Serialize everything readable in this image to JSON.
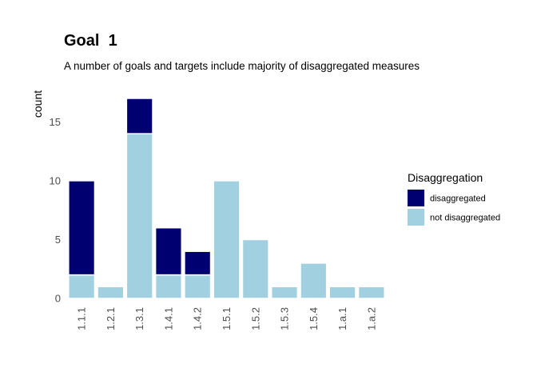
{
  "chart_data": {
    "type": "bar",
    "stacked": true,
    "title": "Goal  1",
    "subtitle": "A number of goals and targets include majority of disaggregated measures",
    "xlabel": "",
    "ylabel": "count",
    "ylim": [
      0,
      18
    ],
    "yticks": [
      0,
      5,
      10,
      15
    ],
    "categories": [
      "1.1.1",
      "1.2.1",
      "1.3.1",
      "1.4.1",
      "1.4.2",
      "1.5.1",
      "1.5.2",
      "1.5.3",
      "1.5.4",
      "1.a.1",
      "1.a.2"
    ],
    "series": [
      {
        "name": "not disaggregated",
        "color": "#a1d0e0",
        "values": [
          2,
          1,
          14,
          2,
          2,
          10,
          5,
          1,
          3,
          1,
          1
        ]
      },
      {
        "name": "disaggregated",
        "color": "#000070",
        "values": [
          8,
          0,
          3,
          4,
          2,
          0,
          0,
          0,
          0,
          0,
          0
        ]
      }
    ],
    "grid": false,
    "legend": {
      "title": "Disaggregation",
      "position": "right",
      "order": [
        "disaggregated",
        "not disaggregated"
      ]
    }
  }
}
